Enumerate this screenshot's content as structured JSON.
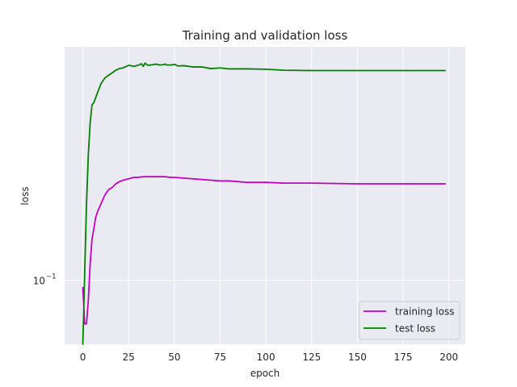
{
  "chart_data": {
    "type": "line",
    "title": "Training and validation loss",
    "xlabel": "epoch",
    "ylabel": "loss",
    "xlim": [
      -9.95,
      208.95
    ],
    "ylim": [
      0.064,
      0.51
    ],
    "yscale": "log",
    "grid": true,
    "legend_position": "lower-right",
    "x_ticks": [
      0,
      25,
      50,
      75,
      100,
      125,
      150,
      175,
      200
    ],
    "x_tick_labels": [
      "0",
      "25",
      "50",
      "75",
      "100",
      "125",
      "150",
      "175",
      "200"
    ],
    "y_ticks": [
      0.1
    ],
    "y_tick_labels": [
      "10",
      "−1"
    ],
    "series": [
      {
        "name": "training loss",
        "color": "#bf00bf",
        "x": [
          0,
          1,
          2,
          3,
          4,
          5,
          6,
          7,
          8,
          10,
          12,
          14,
          16,
          18,
          20,
          22,
          25,
          28,
          30,
          33,
          35,
          38,
          40,
          42,
          45,
          48,
          50,
          55,
          60,
          65,
          70,
          75,
          80,
          85,
          90,
          100,
          110,
          125,
          150,
          175,
          198
        ],
        "y": [
          0.095,
          0.0738,
          0.0738,
          0.087,
          0.112,
          0.133,
          0.143,
          0.155,
          0.161,
          0.171,
          0.181,
          0.188,
          0.191,
          0.196,
          0.199,
          0.201,
          0.203,
          0.205,
          0.205,
          0.206,
          0.206,
          0.206,
          0.206,
          0.206,
          0.206,
          0.205,
          0.205,
          0.204,
          0.203,
          0.202,
          0.201,
          0.2,
          0.2,
          0.199,
          0.198,
          0.198,
          0.197,
          0.197,
          0.196,
          0.196,
          0.196
        ]
      },
      {
        "name": "test loss",
        "color": "#007f00",
        "x": [
          0,
          1,
          2,
          3,
          4,
          5,
          6,
          8,
          10,
          12,
          14,
          16,
          18,
          20,
          22,
          25,
          28,
          30,
          32,
          33,
          34,
          35,
          36,
          38,
          40,
          42,
          44,
          45,
          46,
          48,
          50,
          52,
          55,
          60,
          65,
          70,
          75,
          80,
          90,
          100,
          110,
          125,
          150,
          175,
          198
        ],
        "y": [
          0.064,
          0.105,
          0.17,
          0.24,
          0.3,
          0.34,
          0.345,
          0.37,
          0.395,
          0.41,
          0.418,
          0.425,
          0.433,
          0.438,
          0.44,
          0.448,
          0.445,
          0.448,
          0.453,
          0.445,
          0.455,
          0.45,
          0.448,
          0.45,
          0.452,
          0.449,
          0.45,
          0.452,
          0.449,
          0.449,
          0.451,
          0.446,
          0.447,
          0.443,
          0.443,
          0.438,
          0.44,
          0.437,
          0.437,
          0.436,
          0.433,
          0.432,
          0.432,
          0.432,
          0.432
        ]
      }
    ]
  }
}
